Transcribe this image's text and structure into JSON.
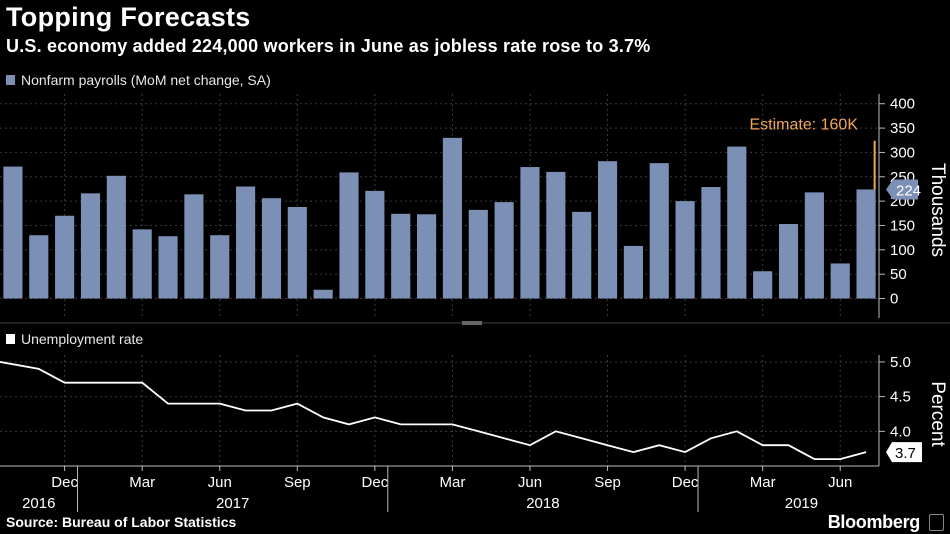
{
  "header": {
    "title": "Topping Forecasts",
    "subtitle": "U.S. economy added 224,000 workers in June as jobless rate rose to 3.7%"
  },
  "footer": {
    "source": "Source: Bureau of Labor Statistics",
    "brand": "Bloomberg"
  },
  "colors": {
    "background": "#000000",
    "bar": "#7c90b5",
    "line": "#ffffff",
    "estimate": "#f2a65a",
    "grid": "#3a3a3a"
  },
  "chart_data": [
    {
      "type": "bar",
      "legend": "Nonfarm payrolls (MoM net change, SA)",
      "ylabel": "Thousands",
      "ylim": [
        -40,
        420
      ],
      "yticks": [
        0,
        50,
        100,
        150,
        200,
        250,
        300,
        350,
        400
      ],
      "values": [
        271,
        130,
        170,
        216,
        252,
        142,
        128,
        214,
        130,
        230,
        206,
        188,
        18,
        259,
        221,
        174,
        173,
        330,
        182,
        198,
        270,
        260,
        178,
        282,
        108,
        278,
        200,
        229,
        312,
        56,
        153,
        218,
        72,
        224
      ],
      "value_label": "224",
      "annotation": {
        "label": "Estimate: 160K",
        "value": 160,
        "top": 324
      }
    },
    {
      "type": "line",
      "legend": "Unemployment rate",
      "ylabel": "Percent",
      "ylim": [
        3.5,
        5.1
      ],
      "yticks": [
        "5.0",
        "4.5",
        "4.0"
      ],
      "values": [
        5.0,
        4.9,
        4.7,
        4.7,
        4.7,
        4.7,
        4.4,
        4.4,
        4.4,
        4.3,
        4.3,
        4.4,
        4.2,
        4.1,
        4.2,
        4.1,
        4.1,
        4.1,
        4.0,
        3.9,
        3.8,
        4.0,
        3.9,
        3.8,
        3.7,
        3.8,
        3.7,
        3.9,
        4.0,
        3.8,
        3.8,
        3.6,
        3.6,
        3.7
      ],
      "value_label": "3.7"
    }
  ],
  "x_axis": {
    "months": [
      "Dec",
      "Mar",
      "Jun",
      "Sep",
      "Dec",
      "Mar",
      "Jun",
      "Sep",
      "Dec",
      "Mar",
      "Jun"
    ],
    "month_index": [
      2,
      5,
      8,
      11,
      14,
      17,
      20,
      23,
      26,
      29,
      32
    ],
    "years": [
      "2016",
      "2017",
      "2018",
      "2019"
    ],
    "year_index": [
      1,
      8.5,
      20.5,
      30.5
    ],
    "separators": [
      2.5,
      14.5,
      26.5
    ]
  }
}
